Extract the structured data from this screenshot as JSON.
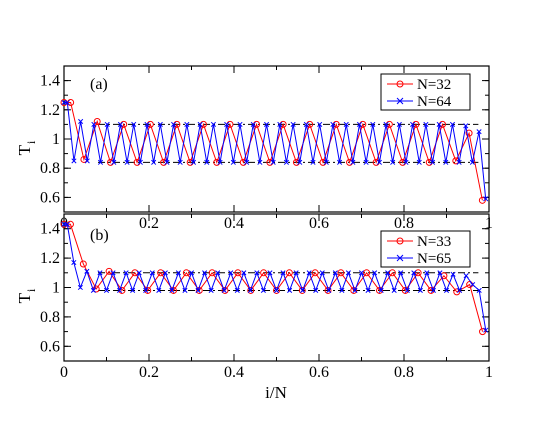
{
  "chart_data": [
    {
      "type": "line",
      "panel_label": "(a)",
      "ylabel": "T",
      "ylabel_sub": "i",
      "xlabel": "",
      "xlim": [
        0,
        1
      ],
      "ylim": [
        0.5,
        1.5
      ],
      "xticks": [
        0,
        0.2,
        0.4,
        0.6,
        0.8,
        1
      ],
      "xtick_labels": [
        "0",
        "0.2",
        "0.4",
        "0.6",
        "0.8",
        "1"
      ],
      "yticks": [
        0.6,
        0.8,
        1,
        1.2,
        1.4
      ],
      "ytick_labels": [
        "0.6",
        "0.8",
        "1",
        "1.2",
        "1.4"
      ],
      "legend_position": "top-right",
      "reference_lines": [
        0.84,
        1.1
      ],
      "series": [
        {
          "name": "N=32",
          "color": "#ff0000",
          "marker": "circle",
          "x": [
            0.0,
            0.0156,
            0.0469,
            0.0781,
            0.1094,
            0.1406,
            0.1719,
            0.2031,
            0.2344,
            0.2656,
            0.2969,
            0.3281,
            0.3594,
            0.3906,
            0.4219,
            0.4531,
            0.4844,
            0.5156,
            0.5469,
            0.5781,
            0.6094,
            0.6406,
            0.6719,
            0.7031,
            0.7344,
            0.7656,
            0.7969,
            0.8281,
            0.8594,
            0.8906,
            0.9219,
            0.9531,
            0.9844
          ],
          "y": [
            1.25,
            1.25,
            0.86,
            1.12,
            0.84,
            1.1,
            0.84,
            1.1,
            0.84,
            1.1,
            0.84,
            1.1,
            0.84,
            1.1,
            0.84,
            1.1,
            0.84,
            1.1,
            0.84,
            1.1,
            0.84,
            1.1,
            0.84,
            1.1,
            0.84,
            1.1,
            0.84,
            1.1,
            0.84,
            1.1,
            0.85,
            1.04,
            0.58
          ]
        },
        {
          "name": "N=64",
          "color": "#0000ff",
          "marker": "x",
          "x": [
            0.0,
            0.0078,
            0.0234,
            0.0391,
            0.0547,
            0.0703,
            0.0859,
            0.1016,
            0.1172,
            0.1328,
            0.1484,
            0.1641,
            0.1797,
            0.1953,
            0.2109,
            0.2266,
            0.2422,
            0.2578,
            0.2734,
            0.2891,
            0.3047,
            0.3203,
            0.3359,
            0.3516,
            0.3672,
            0.3828,
            0.3984,
            0.4141,
            0.4297,
            0.4453,
            0.4609,
            0.4766,
            0.4922,
            0.5078,
            0.5234,
            0.5391,
            0.5547,
            0.5703,
            0.5859,
            0.6016,
            0.6172,
            0.6328,
            0.6484,
            0.6641,
            0.6797,
            0.6953,
            0.7109,
            0.7266,
            0.7422,
            0.7578,
            0.7734,
            0.7891,
            0.8047,
            0.8203,
            0.8359,
            0.8516,
            0.8672,
            0.8828,
            0.8984,
            0.9141,
            0.9297,
            0.9453,
            0.9609,
            0.9766,
            0.9922
          ],
          "y": [
            1.25,
            1.25,
            0.85,
            1.12,
            0.85,
            1.1,
            0.84,
            1.1,
            0.84,
            1.1,
            0.84,
            1.1,
            0.84,
            1.1,
            0.84,
            1.1,
            0.84,
            1.1,
            0.84,
            1.1,
            0.84,
            1.1,
            0.84,
            1.1,
            0.84,
            1.1,
            0.84,
            1.1,
            0.84,
            1.1,
            0.84,
            1.1,
            0.84,
            1.1,
            0.84,
            1.1,
            0.84,
            1.1,
            0.84,
            1.1,
            0.84,
            1.1,
            0.84,
            1.1,
            0.84,
            1.1,
            0.84,
            1.1,
            0.84,
            1.1,
            0.84,
            1.1,
            0.84,
            1.1,
            0.84,
            1.1,
            0.84,
            1.1,
            0.84,
            1.1,
            0.84,
            1.09,
            0.84,
            1.05,
            0.59
          ]
        }
      ]
    },
    {
      "type": "line",
      "panel_label": "(b)",
      "ylabel": "T",
      "ylabel_sub": "i",
      "xlabel": "i/N",
      "xlim": [
        0,
        1
      ],
      "ylim": [
        0.5,
        1.5
      ],
      "xticks": [
        0,
        0.2,
        0.4,
        0.6,
        0.8,
        1
      ],
      "xtick_labels": [
        "0",
        "0.2",
        "0.4",
        "0.6",
        "0.8",
        "1"
      ],
      "yticks": [
        0.6,
        0.8,
        1,
        1.2,
        1.4
      ],
      "ytick_labels": [
        "0.6",
        "0.8",
        "1",
        "1.2",
        "1.4"
      ],
      "legend_position": "top-right",
      "reference_lines": [
        0.98,
        1.1
      ],
      "series": [
        {
          "name": "N=33",
          "color": "#ff0000",
          "marker": "circle",
          "x": [
            0.0,
            0.0152,
            0.0455,
            0.0758,
            0.1061,
            0.1364,
            0.1667,
            0.197,
            0.2273,
            0.2576,
            0.2879,
            0.3182,
            0.3485,
            0.3788,
            0.4091,
            0.4394,
            0.4697,
            0.5,
            0.5303,
            0.5606,
            0.5909,
            0.6212,
            0.6515,
            0.6818,
            0.7121,
            0.7424,
            0.7727,
            0.803,
            0.8333,
            0.8636,
            0.8939,
            0.9242,
            0.9545,
            0.9848
          ],
          "y": [
            1.43,
            1.43,
            1.16,
            0.99,
            1.11,
            0.98,
            1.1,
            0.98,
            1.1,
            0.98,
            1.1,
            0.98,
            1.1,
            0.98,
            1.1,
            0.98,
            1.1,
            0.98,
            1.1,
            0.98,
            1.1,
            0.98,
            1.1,
            0.98,
            1.1,
            0.98,
            1.1,
            0.98,
            1.1,
            0.98,
            1.08,
            0.97,
            1.02,
            0.7
          ]
        },
        {
          "name": "N=65",
          "color": "#0000ff",
          "marker": "x",
          "x": [
            0.0,
            0.0077,
            0.0231,
            0.0385,
            0.0538,
            0.0692,
            0.0846,
            0.1,
            0.1154,
            0.1308,
            0.1462,
            0.1615,
            0.1769,
            0.1923,
            0.2077,
            0.2231,
            0.2385,
            0.2538,
            0.2692,
            0.2846,
            0.3,
            0.3154,
            0.3308,
            0.3462,
            0.3615,
            0.3769,
            0.3923,
            0.4077,
            0.4231,
            0.4385,
            0.4538,
            0.4692,
            0.4846,
            0.5,
            0.5154,
            0.5308,
            0.5462,
            0.5615,
            0.5769,
            0.5923,
            0.6077,
            0.6231,
            0.6385,
            0.6538,
            0.6692,
            0.6846,
            0.7,
            0.7154,
            0.7308,
            0.7462,
            0.7615,
            0.7769,
            0.7923,
            0.8077,
            0.8231,
            0.8385,
            0.8538,
            0.8692,
            0.8846,
            0.9,
            0.9154,
            0.9308,
            0.9462,
            0.9615,
            0.9769,
            0.9923
          ],
          "y": [
            1.43,
            1.43,
            1.17,
            1.0,
            1.11,
            0.98,
            1.1,
            0.98,
            1.1,
            0.98,
            1.1,
            0.98,
            1.1,
            0.98,
            1.1,
            0.98,
            1.1,
            0.98,
            1.1,
            0.98,
            1.1,
            0.98,
            1.1,
            0.98,
            1.1,
            0.98,
            1.1,
            0.98,
            1.1,
            0.98,
            1.1,
            0.98,
            1.1,
            0.98,
            1.1,
            0.98,
            1.1,
            0.98,
            1.1,
            0.98,
            1.1,
            0.98,
            1.1,
            0.98,
            1.1,
            0.98,
            1.1,
            0.98,
            1.1,
            0.98,
            1.1,
            0.98,
            1.1,
            0.98,
            1.1,
            0.98,
            1.1,
            0.98,
            1.1,
            0.98,
            1.09,
            0.98,
            1.08,
            1.02,
            0.98,
            0.71
          ]
        }
      ]
    }
  ]
}
